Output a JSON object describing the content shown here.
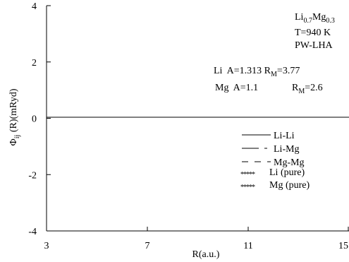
{
  "chart_data": {
    "type": "line",
    "title": "",
    "xlabel": "R(a.u.)",
    "ylabel_main": "Φ",
    "ylabel_sub": "ij",
    "ylabel_rest": " (R)(mRyd)",
    "xlim": [
      3,
      15
    ],
    "ylim": [
      -4,
      4
    ],
    "xticks": [
      3,
      7,
      11,
      15
    ],
    "yticks": [
      -4,
      -2,
      0,
      2,
      4
    ],
    "xtick_labels": [
      "3",
      "7",
      "11",
      "15"
    ],
    "ytick_labels": [
      "-4",
      "-2",
      "0",
      "2",
      "4"
    ],
    "zero_line": 0,
    "grid": false,
    "legend_position": "lower-right",
    "series": [
      {
        "name": "Li-Li",
        "style": "solid",
        "x": [
          3,
          15
        ],
        "y": [
          0,
          0
        ]
      },
      {
        "name": "Li-Mg",
        "style": "long-dash",
        "x": [
          3,
          15
        ],
        "y": [
          0,
          0
        ]
      },
      {
        "name": "Mg-Mg",
        "style": "dash",
        "x": [
          3,
          15
        ],
        "y": [
          0,
          0
        ]
      },
      {
        "name": "Li (pure)",
        "style": "stars",
        "x": [],
        "y": []
      },
      {
        "name": "Mg (pure)",
        "style": "stars",
        "x": [],
        "y": []
      }
    ],
    "annotations": {
      "alloy": {
        "li": "Li",
        "li_sub": "0.7",
        "mg": "Mg",
        "mg_sub": "0.3"
      },
      "temperature": "T=940 K",
      "method": "PW-LHA",
      "param_li": {
        "label": "Li  A=1.313 R",
        "sub": "M",
        "value": "=3.77"
      },
      "param_mg": {
        "label": "Mg  A=1.1",
        "r": "R",
        "sub": "M",
        "value": "=2.6"
      }
    }
  }
}
